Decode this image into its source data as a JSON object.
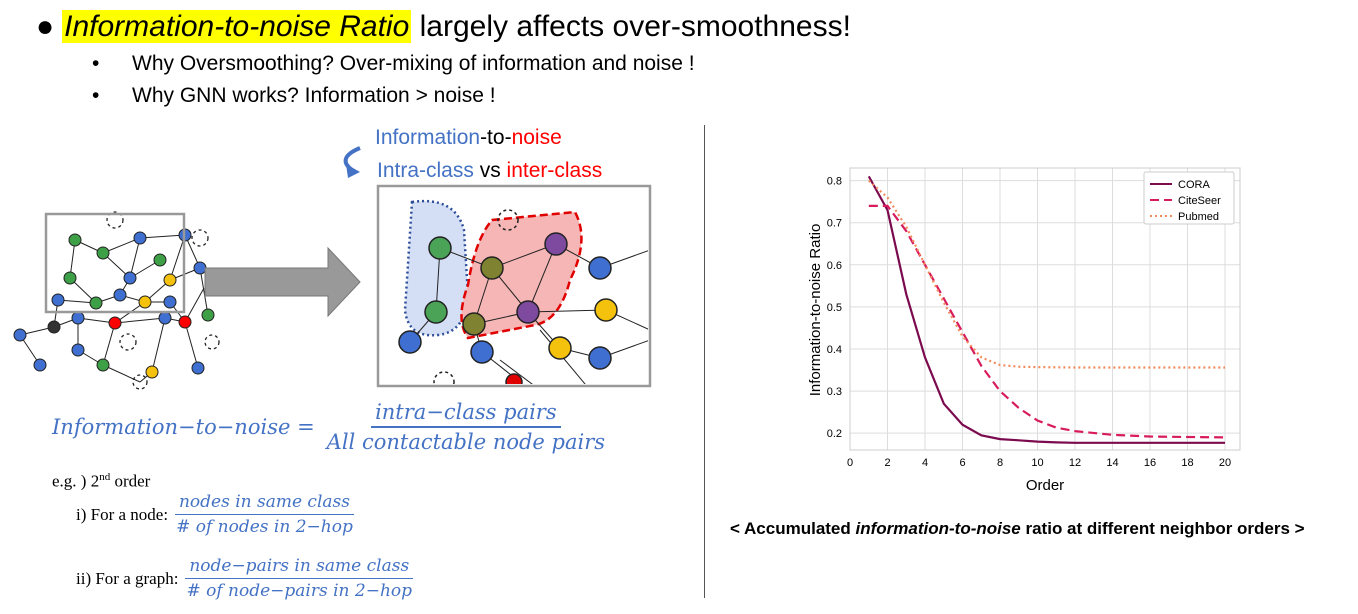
{
  "headline": {
    "highlight": "Information-to-noise Ratio",
    "rest": " largely affects over-smoothness!"
  },
  "bullets": [
    "Why Oversmoothing? Over-mixing of information and noise !",
    "Why GNN works? Information > noise !"
  ],
  "concept": {
    "line1_a": "Information",
    "line1_b": "-to-",
    "line1_c": "noise",
    "line2_a": "Intra-class",
    "line2_b": " vs ",
    "line2_c": "inter-class"
  },
  "formula": {
    "lhs": "Information−to−noise =",
    "numerator": "intra−class pairs",
    "denominator": "All contactable node pairs"
  },
  "example": {
    "label_prefix": "e.g. ) 2",
    "label_sup": "nd",
    "label_suffix": " order",
    "node_label": "i) For a node:",
    "node_num": "nodes in same class",
    "node_den": "# of nodes in 2−hop",
    "graph_label": "ii) For a graph:",
    "graph_num": "node−pairs in same class",
    "graph_den": "# of node−pairs in 2−hop"
  },
  "caption": {
    "prefix": "< Accumulated ",
    "italic": "information-to-noise",
    "suffix": " ratio at different neighbor orders >"
  },
  "colors": {
    "blue": "#4472c4",
    "red": "#ff0000",
    "cora": "#7b0a4f",
    "citeseer": "#d81b5c",
    "pubmed": "#f28a5b"
  },
  "chart_data": {
    "type": "line",
    "xlabel": "Order",
    "ylabel": "Information-to-noise Ratio",
    "xlim": [
      0,
      20.8
    ],
    "ylim": [
      0.16,
      0.83
    ],
    "xticks": [
      0,
      2,
      4,
      6,
      8,
      10,
      12,
      14,
      16,
      18,
      20
    ],
    "yticks": [
      0.2,
      0.3,
      0.4,
      0.5,
      0.6,
      0.7,
      0.8
    ],
    "grid": true,
    "legend": "top-right",
    "series": [
      {
        "name": "CORA",
        "style": "solid",
        "color": "#7b0a4f",
        "x": [
          1,
          2,
          3,
          4,
          5,
          6,
          7,
          8,
          9,
          10,
          11,
          12,
          14,
          16,
          18,
          20
        ],
        "y": [
          0.81,
          0.73,
          0.53,
          0.38,
          0.27,
          0.22,
          0.195,
          0.186,
          0.183,
          0.18,
          0.178,
          0.177,
          0.177,
          0.177,
          0.177,
          0.177
        ]
      },
      {
        "name": "CiteSeer",
        "style": "dashed",
        "color": "#d81b5c",
        "x": [
          1,
          2,
          3,
          4,
          5,
          6,
          7,
          8,
          9,
          10,
          11,
          12,
          14,
          16,
          18,
          20
        ],
        "y": [
          0.74,
          0.74,
          0.68,
          0.6,
          0.52,
          0.44,
          0.36,
          0.3,
          0.26,
          0.23,
          0.213,
          0.205,
          0.196,
          0.192,
          0.191,
          0.19
        ]
      },
      {
        "name": "Pubmed",
        "style": "dotted",
        "color": "#f28a5b",
        "x": [
          1,
          2,
          3,
          4,
          5,
          6,
          7,
          8,
          9,
          10,
          12,
          14,
          16,
          18,
          20
        ],
        "y": [
          0.8,
          0.76,
          0.69,
          0.6,
          0.51,
          0.43,
          0.38,
          0.362,
          0.358,
          0.357,
          0.356,
          0.356,
          0.356,
          0.356,
          0.356
        ]
      }
    ]
  }
}
